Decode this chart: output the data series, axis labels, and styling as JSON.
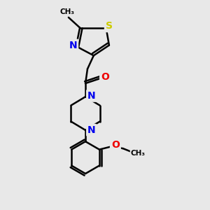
{
  "background_color": "#e8e8e8",
  "atom_colors": {
    "C": "#000000",
    "N": "#0000ee",
    "O": "#ee0000",
    "S": "#cccc00",
    "H": "#000000"
  },
  "bond_color": "#000000",
  "bond_width": 1.8,
  "font_size_atom": 10,
  "xlim": [
    0,
    10
  ],
  "ylim": [
    0,
    10
  ]
}
